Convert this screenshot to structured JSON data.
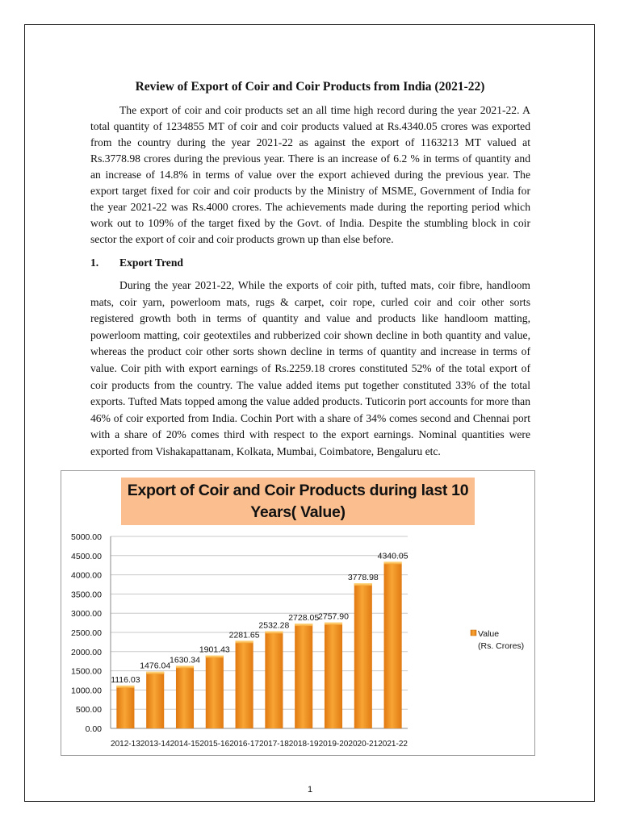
{
  "title": "Review of Export of Coir and Coir Products from India (2021-22)",
  "paragraph1": [
    "The export of coir and coir products set an all time high record during the year 2021-22. A",
    "total quantity of 1234855 MT of coir and coir products valued at Rs.4340.05 crores was exported",
    "from the country during the year 2021-22 as against the export of 1163213 MT valued at",
    "Rs.3778.98 crores during the previous year. There is an increase of 6.2 % in terms of quantity and",
    "an increase of 14.8% in terms of value over the export achieved during the previous year. The",
    "export target fixed for coir and coir products by the Ministry of MSME, Government of India for",
    "the year 2021-22 was Rs.4000 crores. The achievements made during the reporting period which",
    "work out to 109% of the target fixed by the Govt. of India.  Despite the stumbling block in coir",
    "sector the export of coir and coir products grown up than else before."
  ],
  "section": {
    "number": "1.",
    "title": "Export Trend"
  },
  "paragraph2": [
    "During the year 2021-22, While the exports of coir pith, tufted mats, coir fibre, handloom",
    "mats, coir yarn, powerloom mats, rugs & carpet, coir rope, curled coir and coir other sorts",
    "registered growth both in terms of quantity and value and products like handloom matting,",
    "powerloom matting, coir geotextiles and rubberized coir shown decline in both quantity and value,",
    "whereas the product coir other sorts shown decline in terms of quantity and increase in terms of",
    "value. Coir pith with export earnings of Rs.2259.18 crores constituted 52% of the total export of",
    "coir products from the country. The value added items put together constituted 33% of the total",
    "exports. Tufted Mats topped among the value added products. Tuticorin port accounts for more than",
    "46% of coir exported from India. Cochin Port with a share of 34% comes second and Chennai port",
    "with a share of 20% comes third with respect to the export earnings. Nominal quantities were",
    "exported from Vishakapattanam, Kolkata, Mumbai, Coimbatore, Bengaluru etc."
  ],
  "chart_data": {
    "type": "bar",
    "title_line1": "Export of Coir and Coir Products during last 10",
    "title_line2": "Years( Value)",
    "categories": [
      "2012-13",
      "2013-14",
      "2014-15",
      "2015-16",
      "2016-17",
      "2017-18",
      "2018-19",
      "2019-20",
      "2020-21",
      "2021-22"
    ],
    "series": [
      {
        "name": "Value (Rs. Crores)",
        "values": [
          1116.03,
          1476.04,
          1630.34,
          1901.43,
          2281.65,
          2532.28,
          2728.05,
          2757.9,
          3778.98,
          4340.05
        ]
      }
    ],
    "data_labels": [
      "1116.03",
      "1476.04",
      "1630.34",
      "1901.43",
      "2281.65",
      "2532.28",
      "2728.05",
      "2757.90",
      "3778.98",
      "4340.05"
    ],
    "legend_line1": "Value",
    "legend_line2": "(Rs. Crores)",
    "yticks": [
      "0.00",
      "500.00",
      "1000.00",
      "1500.00",
      "2000.00",
      "2500.00",
      "3000.00",
      "3500.00",
      "4000.00",
      "4500.00",
      "5000.00"
    ],
    "ylim": [
      0,
      5000
    ],
    "grid": true,
    "legend_position": "right",
    "bar_color": "#f0921e",
    "title_bg": "#fbbf8f"
  },
  "page_number": "1"
}
